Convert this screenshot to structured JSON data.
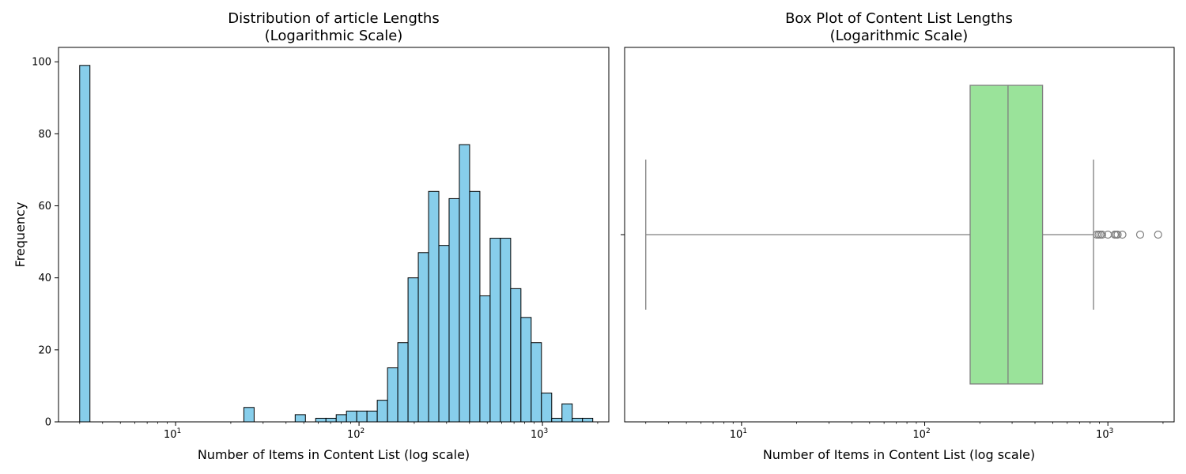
{
  "chart_data": [
    {
      "type": "bar",
      "chart_kind": "histogram",
      "title_lines": [
        "Distribution of article Lengths",
        "(Logarithmic Scale)"
      ],
      "xlabel": "Number of Items in Content List (log scale)",
      "ylabel": "Frequency",
      "x_scale": "log",
      "xlim": [
        2.3,
        2300
      ],
      "ylim": [
        0,
        104
      ],
      "x_ticks": [
        {
          "value": 10,
          "base": "10",
          "exp": "1"
        },
        {
          "value": 100,
          "base": "10",
          "exp": "2"
        },
        {
          "value": 1000,
          "base": "10",
          "exp": "3"
        }
      ],
      "y_ticks": [
        {
          "value": 0,
          "label": "0"
        },
        {
          "value": 20,
          "label": "20"
        },
        {
          "value": 40,
          "label": "40"
        },
        {
          "value": 60,
          "label": "60"
        },
        {
          "value": 80,
          "label": "80"
        },
        {
          "value": 100,
          "label": "100"
        }
      ],
      "grid": false,
      "bar_color": "#87CEEB",
      "edge_color": "#000000",
      "bin_range": [
        3,
        1880
      ],
      "counts": [
        99,
        0,
        0,
        0,
        0,
        0,
        0,
        0,
        0,
        0,
        0,
        0,
        0,
        0,
        0,
        0,
        4,
        0,
        0,
        0,
        0,
        2,
        0,
        1,
        1,
        2,
        3,
        3,
        3,
        6,
        15,
        22,
        40,
        47,
        64,
        49,
        62,
        77,
        64,
        35,
        51,
        51,
        37,
        29,
        22,
        8,
        1,
        5,
        1,
        1
      ]
    },
    {
      "type": "box",
      "title_lines": [
        "Box Plot of Content List Lengths",
        "(Logarithmic Scale)"
      ],
      "xlabel": "Number of Items in Content List (log scale)",
      "x_scale": "log",
      "xlim": [
        2.3,
        2300
      ],
      "x_ticks": [
        {
          "value": 10,
          "base": "10",
          "exp": "1"
        },
        {
          "value": 100,
          "base": "10",
          "exp": "2"
        },
        {
          "value": 1000,
          "base": "10",
          "exp": "3"
        }
      ],
      "grid": false,
      "box_color": "#9AE39A",
      "line_color": "#7F7F7F",
      "whisker_low": 3,
      "q1": 177,
      "median": 285,
      "q3": 440,
      "whisker_high": 835,
      "outliers": [
        870,
        890,
        910,
        930,
        1000,
        1090,
        1110,
        1130,
        1200,
        1500,
        1880
      ]
    }
  ]
}
